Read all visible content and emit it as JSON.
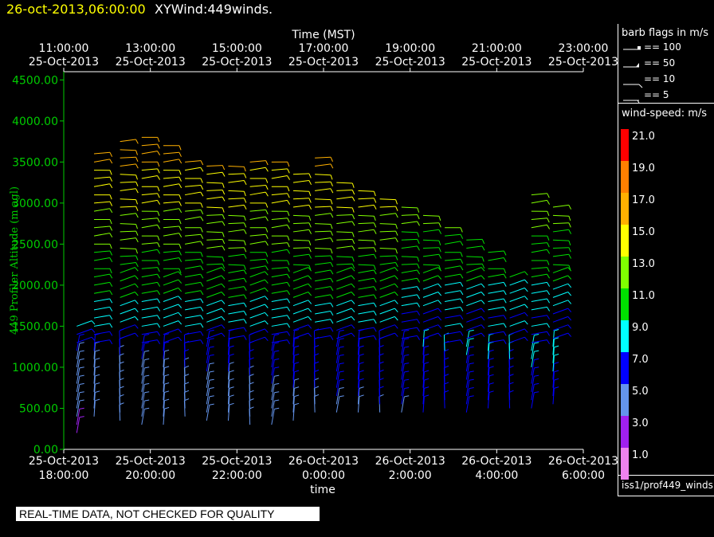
{
  "header": {
    "date_label": "26-oct-2013,06:00:00",
    "plot_name": "XYWind:449winds."
  },
  "chart_data": {
    "type": "wind-barb time-height",
    "top_axis": {
      "label": "Time (MST)",
      "ticks": [
        {
          "time": "11:00:00",
          "date": "25-Oct-2013"
        },
        {
          "time": "13:00:00",
          "date": "25-Oct-2013"
        },
        {
          "time": "15:00:00",
          "date": "25-Oct-2013"
        },
        {
          "time": "17:00:00",
          "date": "25-Oct-2013"
        },
        {
          "time": "19:00:00",
          "date": "25-Oct-2013"
        },
        {
          "time": "21:00:00",
          "date": "25-Oct-2013"
        },
        {
          "time": "23:00:00",
          "date": "25-Oct-2013"
        }
      ]
    },
    "bottom_axis": {
      "label": "time",
      "ticks": [
        {
          "date": "25-Oct-2013",
          "time": "18:00:00"
        },
        {
          "date": "25-Oct-2013",
          "time": "20:00:00"
        },
        {
          "date": "25-Oct-2013",
          "time": "22:00:00"
        },
        {
          "date": "26-Oct-2013",
          "time": "0:00:00"
        },
        {
          "date": "26-Oct-2013",
          "time": "2:00:00"
        },
        {
          "date": "26-Oct-2013",
          "time": "4:00:00"
        },
        {
          "date": "26-Oct-2013",
          "time": "6:00:00"
        }
      ],
      "range_hours_from_18utc": [
        0,
        12
      ]
    },
    "y_axis": {
      "label": "449 Profiler Altitude (m agl)",
      "ticks": [
        "0.00",
        "500.00",
        "1000.00",
        "1500.00",
        "2000.00",
        "2500.00",
        "3000.00",
        "3500.00",
        "4000.00",
        "4500.00"
      ],
      "range": [
        0,
        4600
      ]
    },
    "time_columns_hours": [
      0.3,
      0.7,
      1.3,
      1.8,
      2.3,
      2.8,
      3.3,
      3.8,
      4.3,
      4.8,
      5.3,
      5.8,
      6.3,
      6.8,
      7.3,
      7.8,
      8.3,
      8.8,
      9.3,
      9.8,
      10.3,
      10.8,
      11.3
    ],
    "highest_barb_m": [
      1550,
      3600,
      3800,
      3800,
      3700,
      3550,
      3520,
      3520,
      3500,
      3550,
      3400,
      3600,
      3300,
      3200,
      3100,
      3000,
      2900,
      2750,
      2600,
      2400,
      2100,
      3100,
      2950
    ],
    "lowest_barb_m": [
      200,
      400,
      350,
      300,
      300,
      400,
      350,
      350,
      300,
      300,
      350,
      450,
      450,
      450,
      450,
      450,
      450,
      500,
      450,
      500,
      500,
      500,
      550
    ],
    "wind_field_note": "barbs coloured by wind speed",
    "barb_legend": {
      "title": "barb flags in m/s",
      "entries": [
        "== 100",
        "== 50",
        "== 10",
        "== 5"
      ]
    },
    "speed_legend": {
      "title": "wind-speed: m/s",
      "levels": [
        {
          "label": "21.0",
          "color": "#ff0000"
        },
        {
          "label": "19.0",
          "color": "#ff8000"
        },
        {
          "label": "17.0",
          "color": "#ffb000"
        },
        {
          "label": "15.0",
          "color": "#ffff00"
        },
        {
          "label": "13.0",
          "color": "#80ff00"
        },
        {
          "label": "11.0",
          "color": "#00e000"
        },
        {
          "label": "9.0",
          "color": "#00ffff"
        },
        {
          "label": "7.0",
          "color": "#0000ff"
        },
        {
          "label": "5.0",
          "color": "#6495ed"
        },
        {
          "label": "3.0",
          "color": "#a020f0"
        },
        {
          "label": "1.0",
          "color": "#ee82ee"
        }
      ]
    }
  },
  "footer": {
    "qc_notice": "REAL-TIME DATA, NOT CHECKED FOR QUALITY",
    "source": "iss1/prof449_winds"
  }
}
